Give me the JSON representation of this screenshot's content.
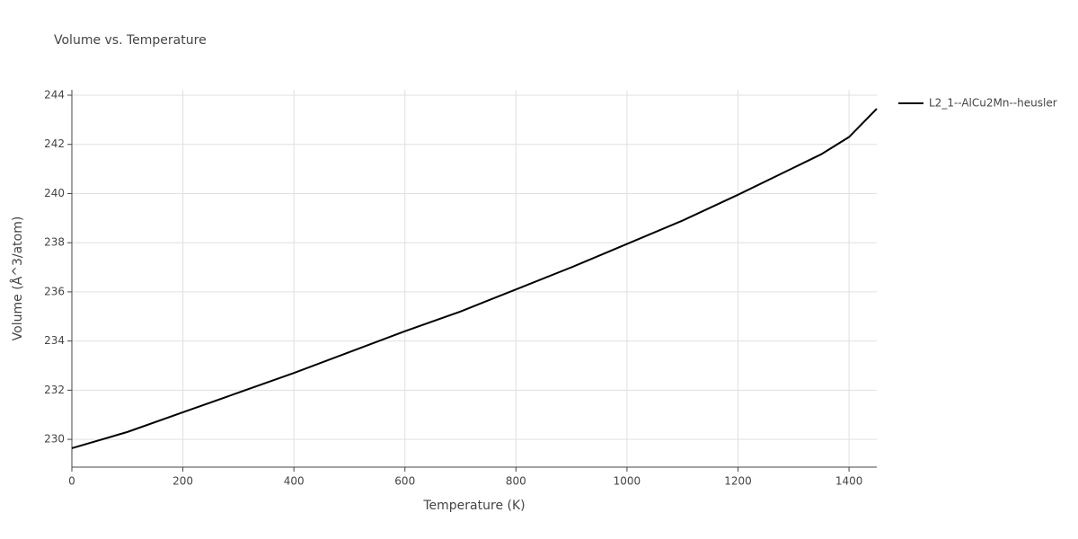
{
  "chart_data": {
    "type": "line",
    "title": "Volume vs. Temperature",
    "x_label": "Temperature (K)",
    "y_label": "Volume (Å^3/atom)",
    "x": [
      0,
      100,
      200,
      300,
      400,
      500,
      600,
      700,
      750,
      800,
      900,
      1000,
      1100,
      1200,
      1300,
      1350,
      1400,
      1450
    ],
    "series": [
      {
        "name": "L2_1--AlCu2Mn--heusler",
        "color": "#000000",
        "values": [
          229.64,
          230.3,
          231.1,
          231.9,
          232.7,
          233.55,
          234.4,
          235.2,
          235.65,
          236.1,
          237.0,
          237.95,
          238.9,
          239.95,
          241.05,
          241.6,
          242.3,
          243.45
        ]
      }
    ],
    "xlim": [
      0,
      1450
    ],
    "ylim": [
      228.87,
      244.22
    ],
    "xticks": [
      0,
      200,
      400,
      600,
      800,
      1000,
      1200,
      1400
    ],
    "yticks": [
      230,
      232,
      234,
      236,
      238,
      240,
      242,
      244
    ],
    "grid": true,
    "legend": "right"
  }
}
